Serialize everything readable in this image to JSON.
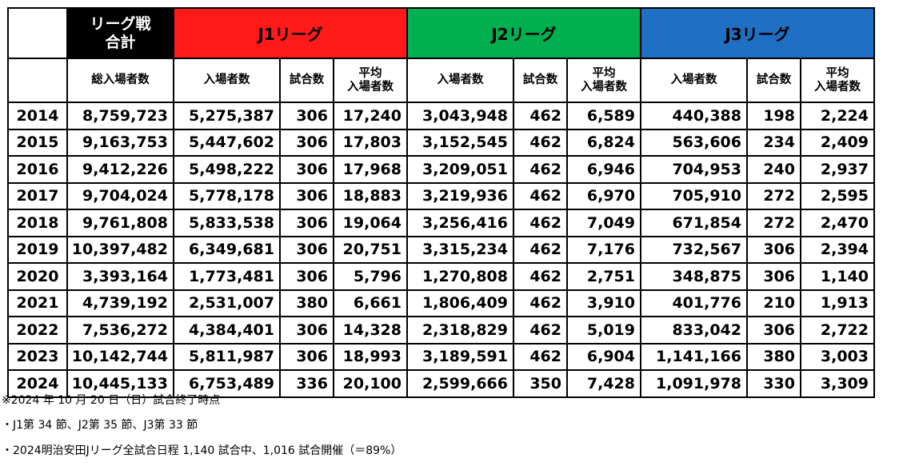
{
  "table": {
    "corner": "",
    "total_header": "リーグ戦\n合計",
    "groups": [
      {
        "label": "J1リーグ",
        "color": "#ff1a1a"
      },
      {
        "label": "J2リーグ",
        "color": "#00b050"
      },
      {
        "label": "J3リーグ",
        "color": "#1f6fc4"
      }
    ],
    "subheaders": [
      "",
      "総入場者数",
      "入場者数",
      "試合数",
      "平均\n入場者数",
      "入場者数",
      "試合数",
      "平均\n入場者数",
      "入場者数",
      "試合数",
      "平均\n入場者数"
    ],
    "rows": [
      [
        "2014",
        "8,759,723",
        "5,275,387",
        "306",
        "17,240",
        "3,043,948",
        "462",
        "6,589",
        "440,388",
        "198",
        "2,224"
      ],
      [
        "2015",
        "9,163,753",
        "5,447,602",
        "306",
        "17,803",
        "3,152,545",
        "462",
        "6,824",
        "563,606",
        "234",
        "2,409"
      ],
      [
        "2016",
        "9,412,226",
        "5,498,222",
        "306",
        "17,968",
        "3,209,051",
        "462",
        "6,946",
        "704,953",
        "240",
        "2,937"
      ],
      [
        "2017",
        "9,704,024",
        "5,778,178",
        "306",
        "18,883",
        "3,219,936",
        "462",
        "6,970",
        "705,910",
        "272",
        "2,595"
      ],
      [
        "2018",
        "9,761,808",
        "5,833,538",
        "306",
        "19,064",
        "3,256,416",
        "462",
        "7,049",
        "671,854",
        "272",
        "2,470"
      ],
      [
        "2019",
        "10,397,482",
        "6,349,681",
        "306",
        "20,751",
        "3,315,234",
        "462",
        "7,176",
        "732,567",
        "306",
        "2,394"
      ],
      [
        "2020",
        "3,393,164",
        "1,773,481",
        "306",
        "5,796",
        "1,270,808",
        "462",
        "2,751",
        "348,875",
        "306",
        "1,140"
      ],
      [
        "2021",
        "4,739,192",
        "2,531,007",
        "380",
        "6,661",
        "1,806,409",
        "462",
        "3,910",
        "401,776",
        "210",
        "1,913"
      ],
      [
        "2022",
        "7,536,272",
        "4,384,401",
        "306",
        "14,328",
        "2,318,829",
        "462",
        "5,019",
        "833,042",
        "306",
        "2,722"
      ],
      [
        "2023",
        "10,142,744",
        "5,811,987",
        "306",
        "18,993",
        "3,189,591",
        "462",
        "6,904",
        "1,141,166",
        "380",
        "3,003"
      ],
      [
        "2024",
        "10,445,133",
        "6,753,489",
        "336",
        "20,100",
        "2,599,666",
        "350",
        "7,428",
        "1,091,978",
        "330",
        "3,309"
      ]
    ]
  },
  "notes": [
    "※2024 年 10 月 20 日（日）試合終了時点",
    "・J1第 34 節、J2第 35 節、J3第 33 節",
    "・2024明治安田Jリーグ全試合日程 1,140 試合中、1,016 試合開催（＝89%）"
  ]
}
